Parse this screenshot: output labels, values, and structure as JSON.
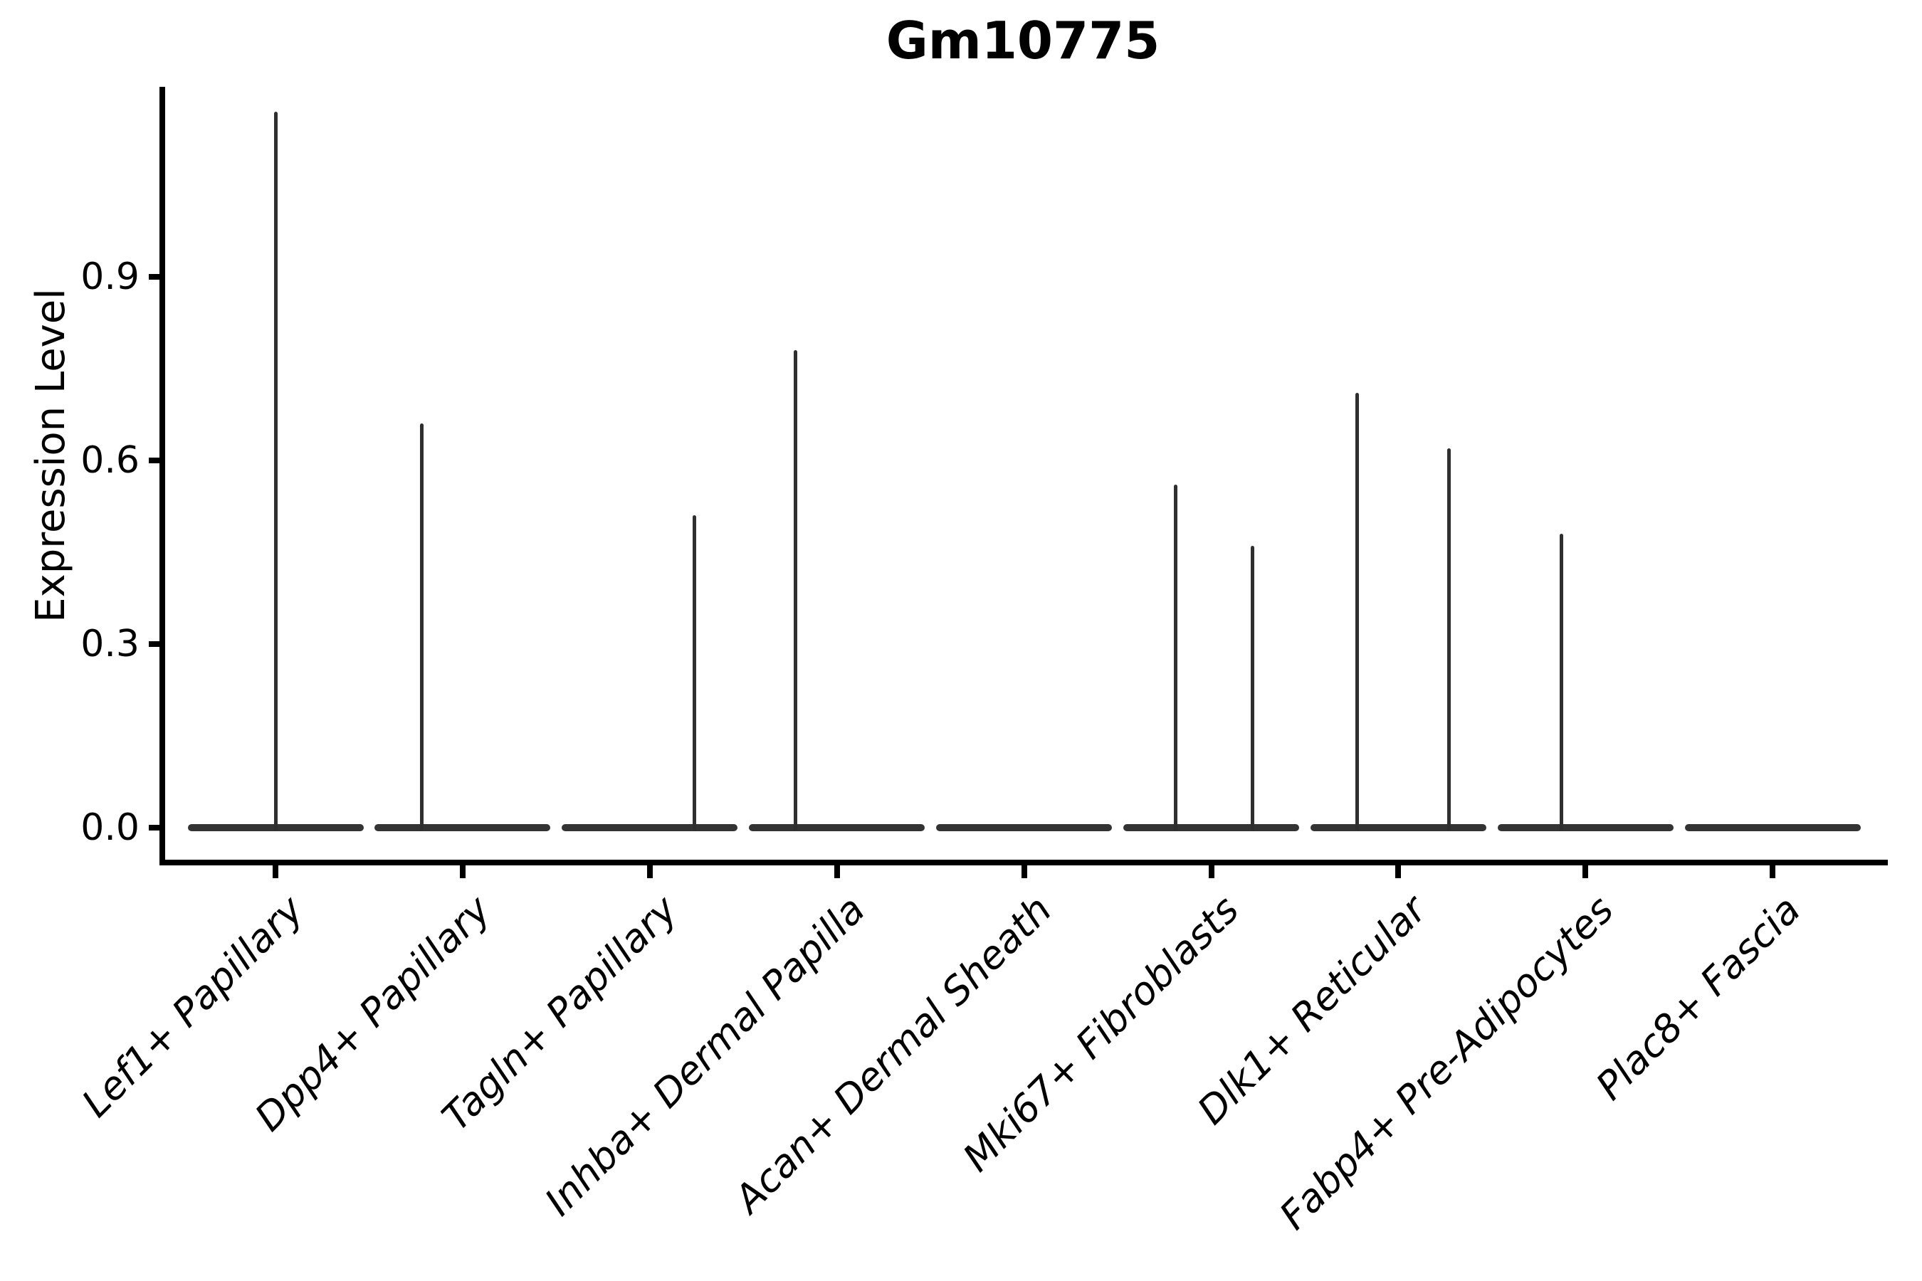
{
  "title": "Gm10775",
  "axes": {
    "ylabel": "Expression Level",
    "xlabel": "",
    "y_tick_labels": [
      "0.0",
      "0.3",
      "0.6",
      "0.9"
    ]
  },
  "colors": {
    "violin": "#333333",
    "axis": "#000000",
    "text": "#000000",
    "background": "#ffffff"
  },
  "chart_data": {
    "type": "violin",
    "title": "Gm10775",
    "ylabel": "Expression Level",
    "xlabel": "",
    "y_ticks": [
      0.0,
      0.3,
      0.6,
      0.9
    ],
    "ylim": [
      -0.06,
      1.21
    ],
    "grid": false,
    "legend": false,
    "categories": [
      "Lef1+ Papillary",
      "Dpp4+ Papillary",
      "Tagln+ Papillary",
      "Inhba+ Dermal Papilla",
      "Acan+ Dermal Sheath",
      "Mki67+ Fibroblasts",
      "Dlk1+ Reticular",
      "Fabp4+ Pre-Adipocytes",
      "Plac8+ Fascia"
    ],
    "violins": [
      {
        "category": "Lef1+ Papillary",
        "base_value": 0,
        "spikes": [
          {
            "value": 1.17,
            "offset_frac": 0.0
          }
        ]
      },
      {
        "category": "Dpp4+ Papillary",
        "base_value": 0,
        "spikes": [
          {
            "value": 0.66,
            "offset_frac": -0.22
          }
        ]
      },
      {
        "category": "Tagln+ Papillary",
        "base_value": 0,
        "spikes": [
          {
            "value": 0.51,
            "offset_frac": 0.24
          }
        ]
      },
      {
        "category": "Inhba+ Dermal Papilla",
        "base_value": 0,
        "spikes": [
          {
            "value": 0.78,
            "offset_frac": -0.22
          }
        ]
      },
      {
        "category": "Acan+ Dermal Sheath",
        "base_value": 0,
        "spikes": []
      },
      {
        "category": "Mki67+ Fibroblasts",
        "base_value": 0,
        "spikes": [
          {
            "value": 0.56,
            "offset_frac": -0.19
          },
          {
            "value": 0.46,
            "offset_frac": 0.22
          }
        ]
      },
      {
        "category": "Dlk1+ Reticular",
        "base_value": 0,
        "spikes": [
          {
            "value": 0.71,
            "offset_frac": -0.22
          },
          {
            "value": 0.62,
            "offset_frac": 0.27
          }
        ]
      },
      {
        "category": "Fabp4+ Pre-Adipocytes",
        "base_value": 0,
        "spikes": [
          {
            "value": 0.48,
            "offset_frac": -0.13
          }
        ]
      },
      {
        "category": "Plac8+ Fascia",
        "base_value": 0,
        "spikes": []
      }
    ]
  }
}
